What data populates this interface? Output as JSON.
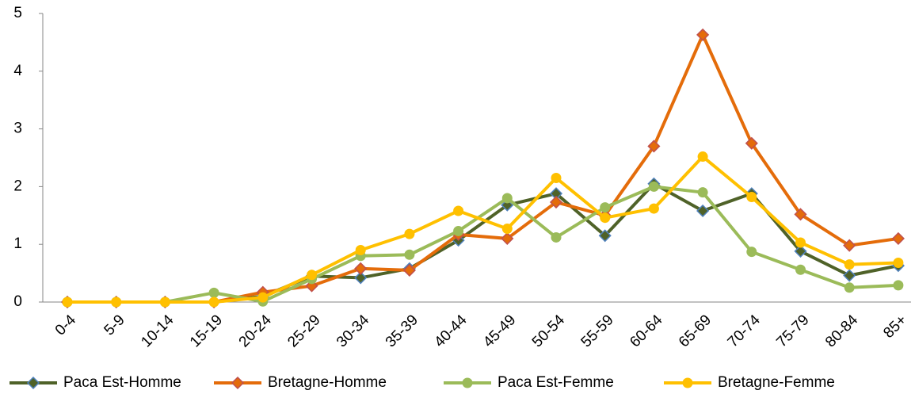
{
  "chart_data": {
    "type": "line",
    "categories": [
      "0-4",
      "5-9",
      "10-14",
      "15-19",
      "20-24",
      "25-29",
      "30-34",
      "35-39",
      "40-44",
      "45-49",
      "50-54",
      "55-59",
      "60-64",
      "65-69",
      "70-74",
      "75-79",
      "80-84",
      "85+"
    ],
    "series": [
      {
        "name": "Paca Est-Homme",
        "color": "#4f6228",
        "marker": "diamond",
        "marker_color": "#4f81bd",
        "values": [
          0,
          0,
          0,
          0,
          0.1,
          0.45,
          0.42,
          0.58,
          1.07,
          1.68,
          1.88,
          1.15,
          2.05,
          1.58,
          1.88,
          0.88,
          0.46,
          0.63
        ]
      },
      {
        "name": "Bretagne-Homme",
        "color": "#e46c0a",
        "marker": "diamond",
        "marker_color": "#c0504d",
        "values": [
          0,
          0,
          0,
          0,
          0.17,
          0.28,
          0.58,
          0.55,
          1.17,
          1.1,
          1.73,
          1.5,
          2.7,
          4.63,
          2.75,
          1.52,
          0.98,
          1.1
        ]
      },
      {
        "name": "Paca Est-Femme",
        "color": "#9bbb59",
        "marker": "circle",
        "marker_color": "#9bbb59",
        "values": [
          0,
          0,
          0,
          0.16,
          0.01,
          0.4,
          0.8,
          0.82,
          1.23,
          1.8,
          1.12,
          1.64,
          2.0,
          1.9,
          0.87,
          0.56,
          0.25,
          0.29
        ]
      },
      {
        "name": "Bretagne-Femme",
        "color": "#ffc000",
        "marker": "circle",
        "marker_color": "#ffc000",
        "values": [
          0,
          0,
          0,
          0,
          0.08,
          0.47,
          0.9,
          1.18,
          1.58,
          1.27,
          2.15,
          1.46,
          1.62,
          2.52,
          1.82,
          1.03,
          0.65,
          0.68
        ]
      }
    ],
    "ylim": [
      0,
      5
    ],
    "yticks": [
      0,
      1,
      2,
      3,
      4,
      5
    ],
    "grid": false,
    "legend": "bottom"
  }
}
